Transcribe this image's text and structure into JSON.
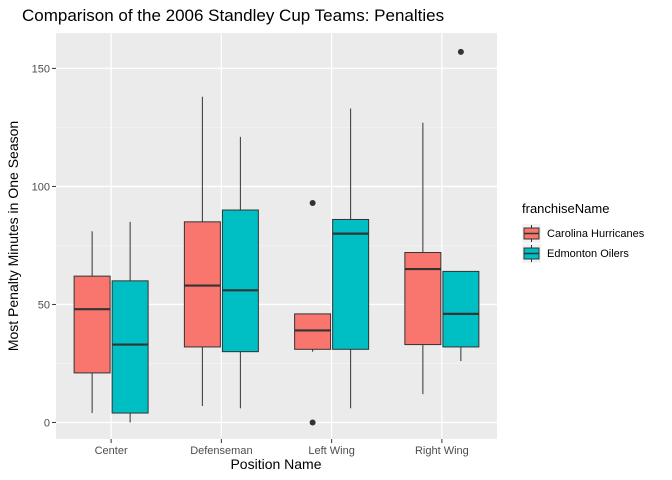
{
  "chart_data": {
    "type": "boxplot",
    "title": "Comparison of the 2006 Standley Cup Teams: Penalties",
    "xlabel": "Position Name",
    "ylabel": "Most Penalty Minutes in One Season",
    "categories": [
      "Center",
      "Defenseman",
      "Left Wing",
      "Right Wing"
    ],
    "ylim": [
      -7,
      165
    ],
    "yticks": [
      0,
      50,
      100,
      150
    ],
    "grid": true,
    "legend": {
      "title": "franchiseName",
      "placement": "right"
    },
    "series": [
      {
        "name": "Carolina Hurricanes",
        "color": "#F8766D",
        "boxes": [
          {
            "min": 4,
            "q1": 21,
            "median": 48,
            "q3": 62,
            "max": 81,
            "outliers": []
          },
          {
            "min": 7,
            "q1": 32,
            "median": 58,
            "q3": 85,
            "max": 138,
            "outliers": []
          },
          {
            "min": 30,
            "q1": 31,
            "median": 39,
            "q3": 46,
            "max": 46,
            "outliers": [
              0,
              93
            ]
          },
          {
            "min": 12,
            "q1": 33,
            "median": 65,
            "q3": 72,
            "max": 127,
            "outliers": []
          }
        ]
      },
      {
        "name": "Edmonton Oilers",
        "color": "#00BFC4",
        "boxes": [
          {
            "min": 0,
            "q1": 4,
            "median": 33,
            "q3": 60,
            "max": 85,
            "outliers": []
          },
          {
            "min": 6,
            "q1": 30,
            "median": 56,
            "q3": 90,
            "max": 121,
            "outliers": []
          },
          {
            "min": 6,
            "q1": 31,
            "median": 80,
            "q3": 86,
            "max": 133,
            "outliers": []
          },
          {
            "min": 26,
            "q1": 32,
            "median": 46,
            "q3": 64,
            "max": 64,
            "outliers": [
              157
            ]
          }
        ]
      }
    ]
  }
}
